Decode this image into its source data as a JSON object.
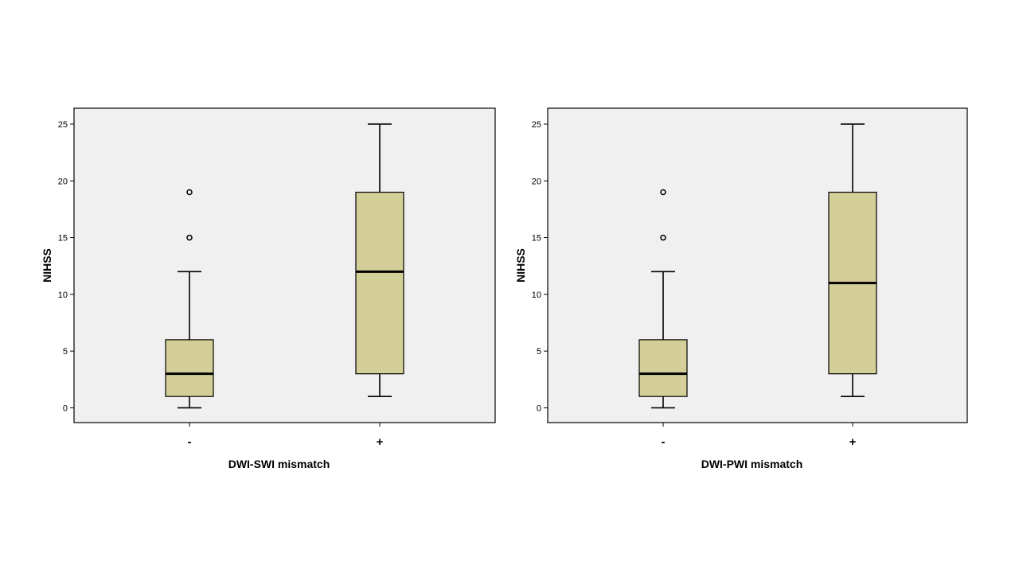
{
  "chart_data": [
    {
      "type": "box",
      "xlabel": "DWI-SWI mismatch",
      "ylabel": "NIHSS",
      "ylim": [
        -1.3,
        26.4
      ],
      "yticks": [
        0,
        5,
        10,
        15,
        20,
        25
      ],
      "categories": [
        "-",
        "+"
      ],
      "groups": [
        {
          "category": "-",
          "min": 0,
          "q1": 1,
          "median": 3,
          "q3": 6,
          "max": 12,
          "outliers": [
            15,
            19
          ]
        },
        {
          "category": "+",
          "min": 1,
          "q1": 3,
          "median": 12,
          "q3": 19,
          "max": 25,
          "outliers": []
        }
      ],
      "box_color": "#d4cf99",
      "plot_background": "#f0f0f0"
    },
    {
      "type": "box",
      "xlabel": "DWI-PWI mismatch",
      "ylabel": "NIHSS",
      "ylim": [
        -1.3,
        26.4
      ],
      "yticks": [
        0,
        5,
        10,
        15,
        20,
        25
      ],
      "categories": [
        "-",
        "+"
      ],
      "groups": [
        {
          "category": "-",
          "min": 0,
          "q1": 1,
          "median": 3,
          "q3": 6,
          "max": 12,
          "outliers": [
            15,
            19
          ]
        },
        {
          "category": "+",
          "min": 1,
          "q1": 3,
          "median": 11,
          "q3": 19,
          "max": 25,
          "outliers": []
        }
      ],
      "box_color": "#d4cf99",
      "plot_background": "#f0f0f0"
    }
  ]
}
